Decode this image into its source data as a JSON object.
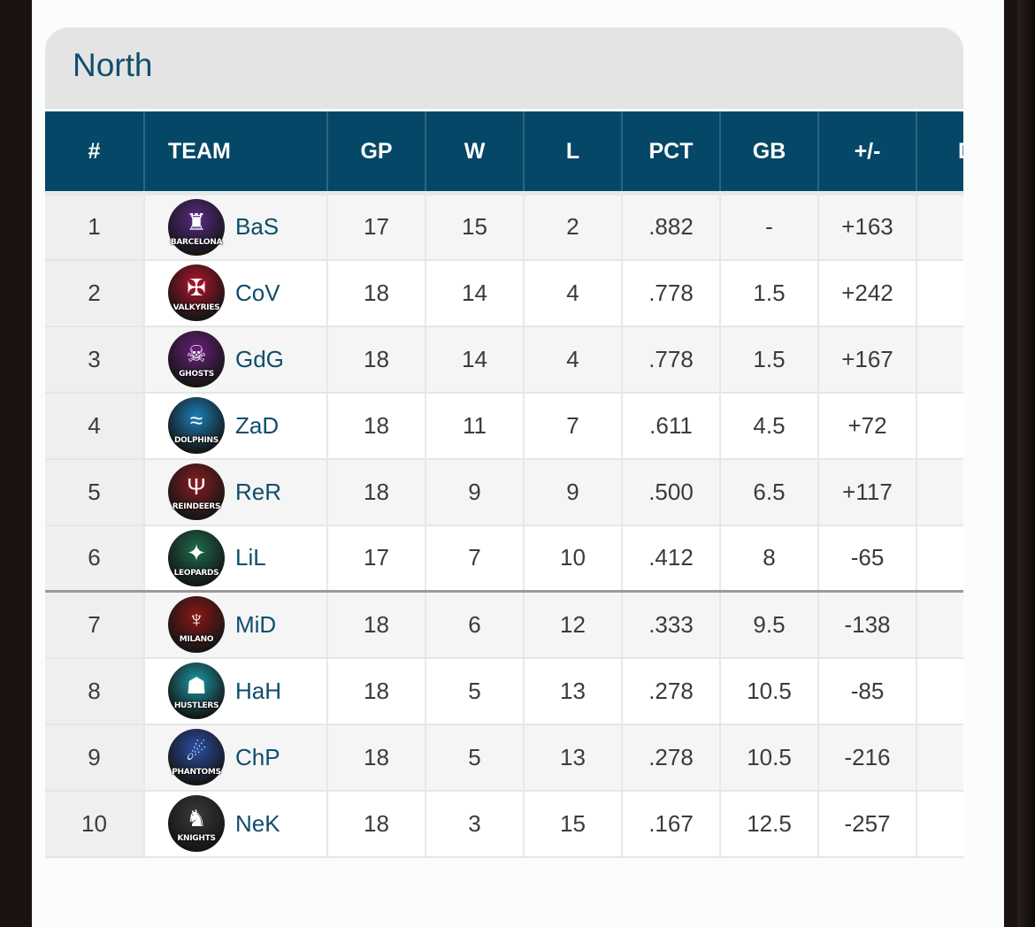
{
  "division": {
    "title": "North"
  },
  "columns": [
    "#",
    "TEAM",
    "GP",
    "W",
    "L",
    "PCT",
    "GB",
    "+/-",
    "D"
  ],
  "rows": [
    {
      "rank": "1",
      "team": "BaS",
      "logo_text": "BARCELONA",
      "logo_icon": "shark-crest-icon",
      "logo_color": "#5b2a86",
      "gp": "17",
      "w": "15",
      "l": "2",
      "pct": ".882",
      "gb": "-",
      "diff": "+163"
    },
    {
      "rank": "2",
      "team": "CoV",
      "logo_text": "VALKYRIES",
      "logo_icon": "valkyrie-wings-icon",
      "logo_color": "#b3152b",
      "gp": "18",
      "w": "14",
      "l": "4",
      "pct": ".778",
      "gb": "1.5",
      "diff": "+242"
    },
    {
      "rank": "3",
      "team": "GdG",
      "logo_text": "GHOSTS",
      "logo_icon": "ghost-icon",
      "logo_color": "#6a1f7a",
      "gp": "18",
      "w": "14",
      "l": "4",
      "pct": ".778",
      "gb": "1.5",
      "diff": "+167"
    },
    {
      "rank": "4",
      "team": "ZaD",
      "logo_text": "DOLPHINS",
      "logo_icon": "dolphin-icon",
      "logo_color": "#1c7fb8",
      "gp": "18",
      "w": "11",
      "l": "7",
      "pct": ".611",
      "gb": "4.5",
      "diff": "+72"
    },
    {
      "rank": "5",
      "team": "ReR",
      "logo_text": "REINDEERS",
      "logo_icon": "reindeer-icon",
      "logo_color": "#8a1d22",
      "gp": "18",
      "w": "9",
      "l": "9",
      "pct": ".500",
      "gb": "6.5",
      "diff": "+117"
    },
    {
      "rank": "6",
      "team": "LiL",
      "logo_text": "LEOPARDS",
      "logo_icon": "leopard-icon",
      "logo_color": "#1f6b4d",
      "gp": "17",
      "w": "7",
      "l": "10",
      "pct": ".412",
      "gb": "8",
      "diff": "-65"
    },
    {
      "rank": "7",
      "team": "MiD",
      "logo_text": "MILANO",
      "logo_icon": "demon-icon",
      "logo_color": "#8c1717",
      "gp": "18",
      "w": "6",
      "l": "12",
      "pct": ".333",
      "gb": "9.5",
      "diff": "-138"
    },
    {
      "rank": "8",
      "team": "HaH",
      "logo_text": "HUSTLERS",
      "logo_icon": "hustler-icon",
      "logo_color": "#1a9aa6",
      "gp": "18",
      "w": "5",
      "l": "13",
      "pct": ".278",
      "gb": "10.5",
      "diff": "-85"
    },
    {
      "rank": "9",
      "team": "ChP",
      "logo_text": "PHANTOMS",
      "logo_icon": "phantom-icon",
      "logo_color": "#2b4fa6",
      "gp": "18",
      "w": "5",
      "l": "13",
      "pct": ".278",
      "gb": "10.5",
      "diff": "-216"
    },
    {
      "rank": "10",
      "team": "NeK",
      "logo_text": "KNIGHTS",
      "logo_icon": "knight-icon",
      "logo_color": "#3a3a3a",
      "gp": "18",
      "w": "3",
      "l": "15",
      "pct": ".167",
      "gb": "12.5",
      "diff": "-257"
    }
  ],
  "colors": {
    "header_bg": "#054766",
    "title_text": "#0f4f6c",
    "team_text": "#0e4d6c"
  }
}
